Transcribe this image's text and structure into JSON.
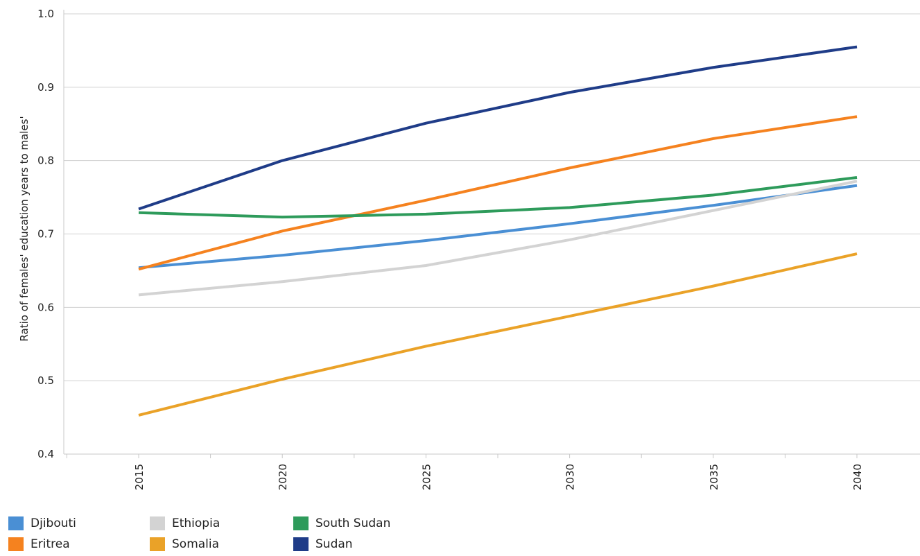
{
  "chart_data": {
    "type": "line",
    "title": "",
    "xlabel": "",
    "ylabel": "Ratio of females' education years to males'",
    "x": [
      "2015",
      "2020",
      "2025",
      "2030",
      "2035",
      "2040"
    ],
    "ylim": [
      0.4,
      1.0
    ],
    "yticks": [
      "0.4",
      "0.5",
      "0.6",
      "0.7",
      "0.8",
      "0.9",
      "1.0"
    ],
    "grid": "horizontal",
    "legend_position": "bottom-left",
    "series": [
      {
        "name": "Djibouti",
        "color": "#4a8fd4",
        "values": [
          0.654,
          0.671,
          0.691,
          0.714,
          0.739,
          0.766
        ]
      },
      {
        "name": "Eritrea",
        "color": "#f5821f",
        "values": [
          0.652,
          0.704,
          0.746,
          0.79,
          0.83,
          0.86
        ]
      },
      {
        "name": "Ethiopia",
        "color": "#d3d3d3",
        "values": [
          0.617,
          0.635,
          0.657,
          0.692,
          0.732,
          0.772
        ]
      },
      {
        "name": "Somalia",
        "color": "#eaa228",
        "values": [
          0.453,
          0.502,
          0.547,
          0.588,
          0.629,
          0.673
        ]
      },
      {
        "name": "South Sudan",
        "color": "#2e9b5b",
        "values": [
          0.729,
          0.723,
          0.727,
          0.736,
          0.753,
          0.777
        ]
      },
      {
        "name": "Sudan",
        "color": "#1f3c88",
        "values": [
          0.734,
          0.8,
          0.851,
          0.893,
          0.927,
          0.955
        ]
      }
    ]
  },
  "legend": [
    {
      "label": "Djibouti",
      "color": "#4a8fd4"
    },
    {
      "label": "Eritrea",
      "color": "#f5821f"
    },
    {
      "label": "Ethiopia",
      "color": "#d3d3d3"
    },
    {
      "label": "Somalia",
      "color": "#eaa228"
    },
    {
      "label": "South Sudan",
      "color": "#2e9b5b"
    },
    {
      "label": "Sudan",
      "color": "#1f3c88"
    }
  ]
}
